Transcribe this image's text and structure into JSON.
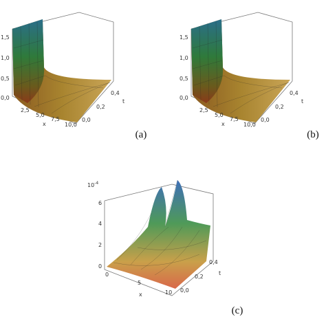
{
  "panels": [
    {
      "label": "(a)",
      "z_ticks": [
        "0,0",
        "0,5",
        "1,0",
        "1,5"
      ],
      "x_ticks": [
        "2,5",
        "5,0",
        "7,5",
        "10,0"
      ],
      "x_label": "x",
      "t_ticks": [
        "0,0",
        "0,2",
        "0,4"
      ],
      "t_label": "t"
    },
    {
      "label": "(b)",
      "z_ticks": [
        "0,0",
        "0,5",
        "1,0",
        "1,5"
      ],
      "x_ticks": [
        "2,5",
        "5,0",
        "7,5",
        "10,0"
      ],
      "x_label": "x",
      "t_ticks": [
        "0,0",
        "0,2",
        "0,4"
      ],
      "t_label": "t"
    },
    {
      "label": "(c)",
      "multiplier_base": "10",
      "multiplier_exponent": "-4",
      "z_ticks": [
        "0",
        "2",
        "4",
        "6"
      ],
      "x_ticks": [
        "0",
        "5",
        "10"
      ],
      "x_label": "x",
      "t_ticks": [
        "0,0",
        "0,2",
        "0,4"
      ],
      "t_label": "t"
    }
  ]
}
